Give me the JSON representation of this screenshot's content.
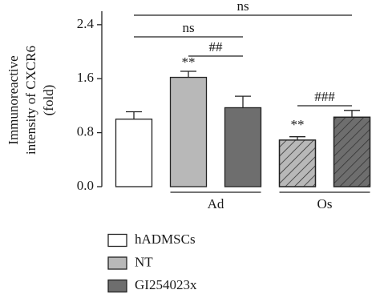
{
  "chart_data": {
    "type": "bar",
    "y_label": [
      "Immunoreactive",
      "intensity of CXCR6",
      "(fold)"
    ],
    "categories": [
      null,
      "Ad",
      "Os"
    ],
    "hatch": [
      false,
      false,
      true
    ],
    "series": [
      {
        "name": "hADMSCs",
        "color": "#ffffff",
        "values": [
          1.0,
          null,
          null
        ],
        "errors": [
          0.11,
          null,
          null
        ]
      },
      {
        "name": "NT",
        "color": "#b8b8b8",
        "values": [
          null,
          1.62,
          0.69
        ],
        "errors": [
          null,
          0.09,
          0.05
        ]
      },
      {
        "name": "GI254023x",
        "color": "#6e6e6e",
        "values": [
          null,
          1.17,
          1.03
        ],
        "errors": [
          null,
          0.17,
          0.1
        ]
      }
    ],
    "ylim": [
      0,
      2.6
    ],
    "yticks": [
      {
        "value": 0,
        "label": "0.0"
      },
      0.8,
      1.6,
      2.4
    ],
    "brackets": [
      "ns",
      "ns",
      "##",
      "###"
    ],
    "stars": [
      "**",
      "**"
    ]
  }
}
